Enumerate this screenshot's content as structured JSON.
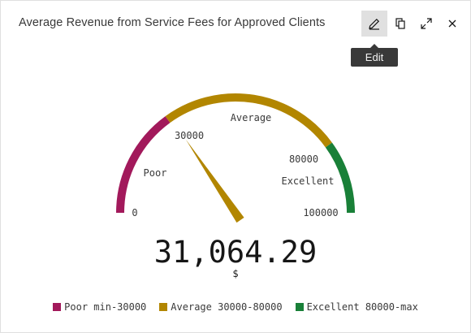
{
  "header": {
    "title": "Average Revenue from Service Fees for Approved Clients",
    "tooltip": "Edit",
    "icons": [
      "edit-icon",
      "copy-icon",
      "expand-icon",
      "close-icon"
    ]
  },
  "chart_data": {
    "type": "gauge",
    "min": 0,
    "max": 100000,
    "value": 31064.29,
    "value_label": "31,064.29",
    "unit": "$",
    "min_label": "0",
    "max_label": "100000",
    "bands": [
      {
        "name": "Poor",
        "from": 0,
        "to": 30000,
        "color": "#a2195b",
        "legend": "Poor min-30000",
        "threshold_label": "30000"
      },
      {
        "name": "Average",
        "from": 30000,
        "to": 80000,
        "color": "#b28600",
        "legend": "Average 30000-80000",
        "threshold_label": "80000"
      },
      {
        "name": "Excellent",
        "from": 80000,
        "to": 100000,
        "color": "#198038",
        "legend": "Excellent 80000-max"
      }
    ]
  }
}
